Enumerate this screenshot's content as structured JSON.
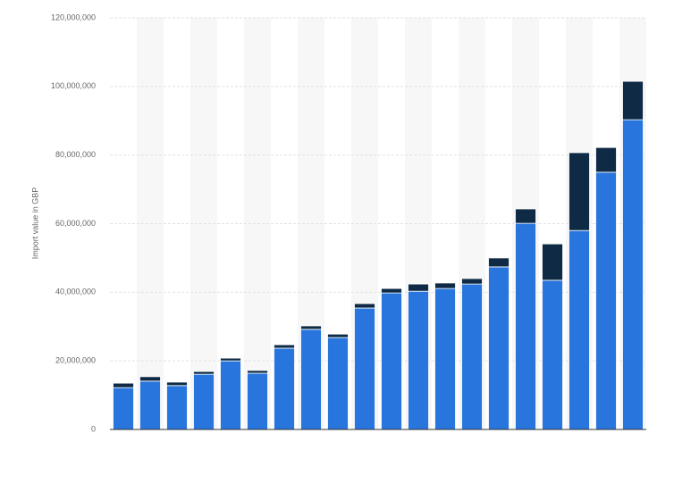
{
  "chart_data": {
    "type": "stacked-bar",
    "y_axis_label": "Import value in GBP",
    "categories": [
      null,
      null,
      null,
      null,
      null,
      null,
      null,
      null,
      null,
      null,
      null,
      null,
      null,
      null,
      null,
      null,
      null,
      null,
      null,
      null
    ],
    "series": [
      {
        "color": "#2876dd",
        "values": [
          12200000,
          14100000,
          12800000,
          16100000,
          20000000,
          16400000,
          23700000,
          29200000,
          26800000,
          35400000,
          39800000,
          40300000,
          41100000,
          42400000,
          47400000,
          60100000,
          43500000,
          58000000,
          75000000,
          90300000
        ]
      },
      {
        "color": "#0f2a45",
        "values": [
          1300000,
          1300000,
          1000000,
          800000,
          800000,
          800000,
          1000000,
          1000000,
          1000000,
          1300000,
          1300000,
          2100000,
          1600000,
          1600000,
          2600000,
          4200000,
          10600000,
          22700000,
          7200000,
          11200000
        ]
      }
    ],
    "ylim": [
      0,
      120000000
    ],
    "yticks": [
      0,
      {
        "value": 20000000,
        "label": "20,000,000"
      },
      {
        "value": 40000000,
        "label": "40,000,000"
      },
      {
        "value": 60000000,
        "label": "60,000,000"
      },
      {
        "value": 80000000,
        "label": "80,000,000"
      },
      {
        "value": 100000000,
        "label": "100,000,000"
      },
      {
        "value": 120000000,
        "label": "120,000,000"
      }
    ],
    "grid": true
  }
}
